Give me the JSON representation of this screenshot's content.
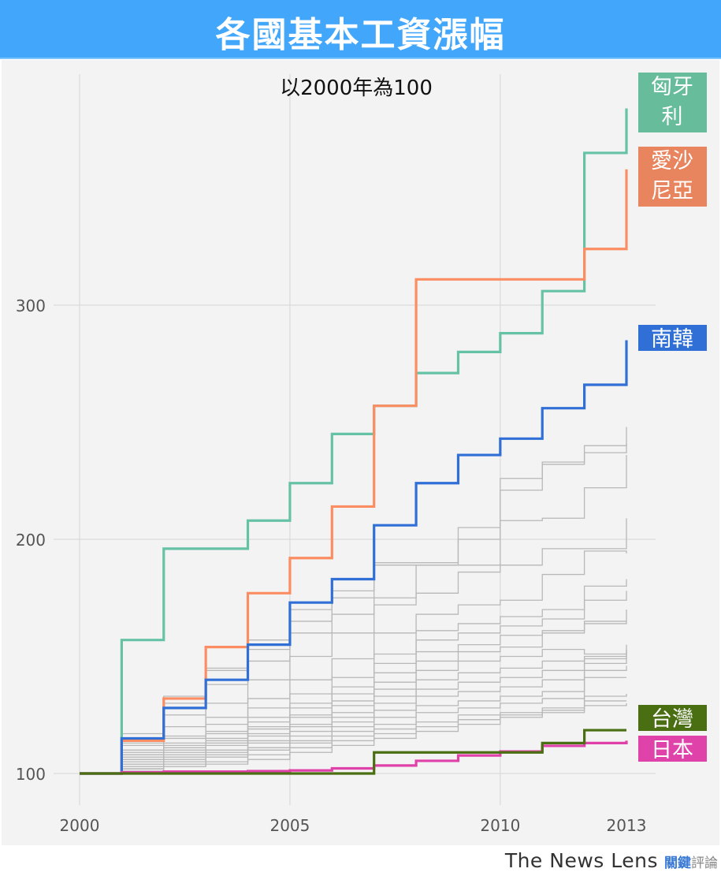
{
  "header": {
    "title": "各國基本工資漲幅"
  },
  "footer": {
    "brand_en": "The News Lens",
    "brand_zh_highlight": "關鍵",
    "brand_zh_rest": "評論"
  },
  "chart_data": {
    "type": "line",
    "step": true,
    "title": "各國基本工資漲幅",
    "subtitle": "以2000年為100",
    "xlabel": "",
    "ylabel": "",
    "xlim": [
      2000,
      2013
    ],
    "ylim": [
      80,
      395
    ],
    "x_ticks": [
      2000,
      2005,
      2010,
      2013
    ],
    "x_tick_labels": [
      "2000",
      "2005",
      "2010",
      "2013"
    ],
    "y_ticks": [
      100,
      200,
      300
    ],
    "y_tick_labels": [
      "100",
      "200",
      "300"
    ],
    "grid": true,
    "x": [
      2000,
      2001,
      2002,
      2003,
      2004,
      2005,
      2006,
      2007,
      2008,
      2009,
      2010,
      2011,
      2012,
      2013
    ],
    "highlighted_series": [
      {
        "name": "匈牙利",
        "label_lines": [
          "匈牙",
          "利"
        ],
        "color": "#66c2a5",
        "values": [
          100,
          157,
          196,
          196,
          208,
          224,
          245,
          257,
          271,
          280,
          288,
          306,
          365,
          384
        ]
      },
      {
        "name": "愛沙尼亞",
        "label_lines": [
          "愛沙",
          "尼亞"
        ],
        "color": "#fc8d62",
        "values": [
          100,
          114,
          132,
          154,
          177,
          192,
          214,
          257,
          311,
          311,
          311,
          311,
          324,
          358
        ]
      },
      {
        "name": "南韓",
        "label_lines": [
          "南韓"
        ],
        "color": "#2f6fd6",
        "values": [
          100,
          115,
          128,
          140,
          155,
          173,
          183,
          206,
          224,
          236,
          243,
          256,
          266,
          285
        ]
      },
      {
        "name": "台灣",
        "label_lines": [
          "台灣"
        ],
        "color": "#4a6e12",
        "values": [
          100,
          100,
          100,
          100,
          100,
          100,
          100,
          109,
          109,
          109,
          109,
          113,
          118.5,
          118.5
        ]
      },
      {
        "name": "日本",
        "label_lines": [
          "日本"
        ],
        "color": "#e041a8",
        "values": [
          100,
          100.5,
          100.8,
          100.8,
          101,
          101.3,
          102.2,
          103.4,
          105.4,
          107.7,
          109.4,
          111.8,
          113,
          114
        ]
      }
    ],
    "other_series_color": "#b8b8b8",
    "other_series": [
      {
        "values": [
          100,
          117,
          133,
          145,
          157,
          170,
          178,
          190,
          190,
          205,
          226,
          233,
          240,
          248
        ]
      },
      {
        "values": [
          100,
          113,
          130,
          144,
          153,
          165,
          175,
          189,
          189,
          200,
          221,
          232,
          237,
          241
        ]
      },
      {
        "values": [
          100,
          112,
          125,
          138,
          148,
          160,
          168,
          175,
          189,
          189,
          208,
          209,
          222,
          236
        ]
      },
      {
        "values": [
          100,
          110,
          120,
          130,
          140,
          150,
          160,
          172,
          177,
          186,
          189,
          196,
          196,
          209
        ]
      },
      {
        "values": [
          100,
          109,
          116,
          124,
          132,
          140,
          149,
          160,
          168,
          172,
          174,
          185,
          195,
          194
        ]
      },
      {
        "values": [
          100,
          108,
          115,
          121,
          128,
          134,
          141,
          151,
          161,
          164,
          167,
          170,
          180,
          183
        ]
      },
      {
        "values": [
          100,
          108,
          113,
          118,
          124,
          130,
          137,
          147,
          157,
          160,
          163,
          166,
          174,
          178
        ]
      },
      {
        "values": [
          100,
          107,
          112,
          117,
          122,
          128,
          134,
          143,
          152,
          155,
          159,
          161,
          165,
          170
        ]
      },
      {
        "values": [
          100,
          106,
          111,
          115,
          120,
          125,
          131,
          139,
          148,
          152,
          154,
          160,
          164,
          165
        ]
      },
      {
        "values": [
          100,
          106,
          110,
          114,
          119,
          124,
          129,
          136,
          144,
          148,
          150,
          153,
          151,
          155
        ]
      },
      {
        "values": [
          100,
          105,
          109,
          113,
          117,
          121,
          126,
          133,
          140,
          143,
          145,
          148,
          150,
          153
        ]
      },
      {
        "values": [
          100,
          104,
          108,
          112,
          116,
          120,
          124,
          130,
          136,
          139,
          141,
          144,
          149,
          152
        ]
      },
      {
        "values": [
          100,
          104,
          107,
          110,
          114,
          118,
          122,
          127,
          133,
          135,
          137,
          140,
          147,
          150
        ]
      },
      {
        "values": [
          100,
          103,
          106,
          109,
          113,
          116,
          120,
          124,
          129,
          131,
          133,
          135,
          144,
          146
        ]
      },
      {
        "values": [
          100,
          103,
          105,
          108,
          111,
          114,
          118,
          121,
          126,
          128,
          130,
          132,
          141,
          141
        ]
      },
      {
        "values": [
          100,
          102,
          104,
          107,
          110,
          113,
          116,
          119,
          122,
          125,
          126,
          128,
          133,
          134
        ]
      },
      {
        "values": [
          100,
          102,
          103,
          105,
          108,
          111,
          114,
          117,
          120,
          123,
          125,
          127,
          131,
          131
        ]
      },
      {
        "values": [
          100,
          101,
          103,
          104,
          106,
          109,
          112,
          115,
          118,
          121,
          124,
          126,
          129,
          130
        ]
      }
    ]
  }
}
